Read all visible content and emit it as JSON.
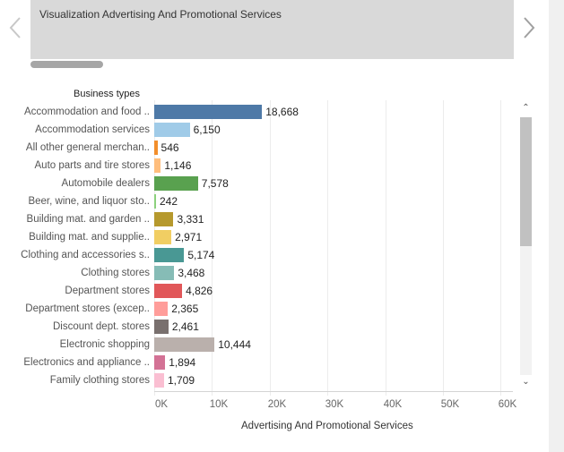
{
  "card": {
    "title": "Visualization Advertising And Promotional Services"
  },
  "nav": {
    "prev_icon": "chevron-left-icon",
    "next_icon": "chevron-right-icon"
  },
  "scrollbar": {
    "up_glyph": "⌃",
    "down_glyph": "⌄",
    "position_fraction": 0.0,
    "visible_fraction": 0.5
  },
  "chart_data": {
    "type": "bar",
    "orientation": "horizontal",
    "row_header": "Business types",
    "xlabel": "Advertising And Promotional Services",
    "xlim": [
      0,
      62000
    ],
    "xticks": [
      0,
      10000,
      20000,
      30000,
      40000,
      50000,
      60000
    ],
    "xtick_labels": [
      "0K",
      "10K",
      "20K",
      "30K",
      "40K",
      "50K",
      "60K"
    ],
    "grid": true,
    "categories": [
      "Accommodation and food ..",
      "Accommodation services",
      "All other general merchan..",
      "Auto parts and tire stores",
      "Automobile dealers",
      "Beer, wine, and liquor sto..",
      "Building mat. and garden ..",
      "Building mat. and supplie..",
      "Clothing and accessories s..",
      "Clothing stores",
      "Department stores",
      "Department stores (excep..",
      "Discount dept. stores",
      "Electronic shopping",
      "Electronics and appliance ..",
      "Family clothing stores"
    ],
    "values": [
      18668,
      6150,
      546,
      1146,
      7578,
      242,
      3331,
      2971,
      5174,
      3468,
      4826,
      2365,
      2461,
      10444,
      1894,
      1709
    ],
    "value_labels": [
      "18,668",
      "6,150",
      "546",
      "1,146",
      "7,578",
      "242",
      "3,331",
      "2,971",
      "5,174",
      "3,468",
      "4,826",
      "2,365",
      "2,461",
      "10,444",
      "1,894",
      "1,709"
    ],
    "colors": [
      "#4e79a7",
      "#a0cbe8",
      "#f28e2b",
      "#ffbe7d",
      "#59a14f",
      "#8cd17d",
      "#b6992d",
      "#f1ce63",
      "#499894",
      "#86bcb6",
      "#e15759",
      "#ff9d9a",
      "#79706e",
      "#bab0ac",
      "#d37295",
      "#fabfd2"
    ]
  }
}
